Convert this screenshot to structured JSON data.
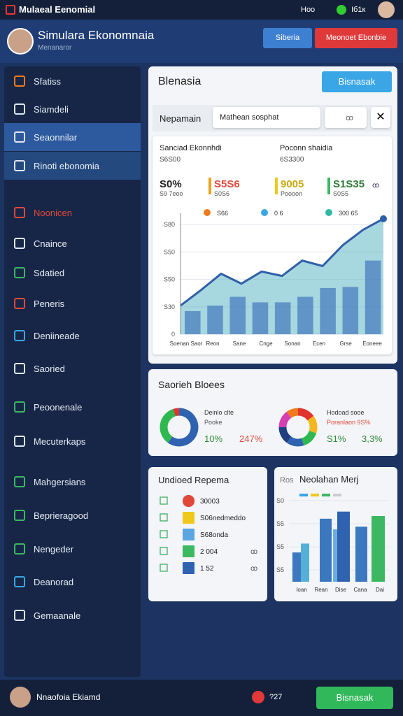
{
  "top_bar": {
    "app_name": "Mulaeal Eenomial",
    "right_labels": [
      "Hoo",
      "Iб1к"
    ]
  },
  "header": {
    "title": "Simulara Ekonomnaia",
    "subtitle": "Menanaror",
    "buttons": [
      "Siberia",
      "Meonoet Ebonbie"
    ]
  },
  "sidebar": {
    "items": [
      "Sfatiss",
      "Siamdeli",
      "Seaonnilar",
      "Rinoti ebonomia",
      "Noonicen",
      "Cnaince",
      "Sdatied",
      "Peneris",
      "Deniineade",
      "Saoried",
      "Peoonenale",
      "Mecuterkaps",
      "Mahgersians",
      "Beprieragood",
      "Nengeder",
      "Deanorad",
      "Gemaanale"
    ]
  },
  "main_panel": {
    "title": "Blenasia",
    "button": "Bisnasak",
    "filter_label": "Nepamain",
    "select": "Mathean sosphat",
    "search_text": "ꝏ",
    "cards": [
      {
        "title": "Sanciad Ekonnhdi",
        "value": "S6S00"
      },
      {
        "title": "Poconn shaidia",
        "value": "6S3300"
      }
    ],
    "stats": [
      {
        "value": "S0%",
        "sub": "S9 7eoo"
      },
      {
        "value": "S5S6",
        "sub": "S0S6"
      },
      {
        "value": "9005",
        "sub": "Poooon"
      },
      {
        "value": "S1S35",
        "sub": "S0S5"
      }
    ],
    "badge": "ꝏ"
  },
  "pie_panel": {
    "title": "Saorieh Bloees",
    "left": {
      "title": "Deinlo clte",
      "sub": "Pooke",
      "stats": [
        "10%",
        "247%"
      ]
    },
    "right": {
      "title": "Hodoad sooe",
      "sub": "Poranlaon 9S%",
      "stats": [
        "S1%",
        "3,3%"
      ]
    }
  },
  "list_panel": {
    "title": "Undioed Repema",
    "rows": [
      {
        "text": "30003",
        "value": ""
      },
      {
        "text": "S06nedmeddo",
        "value": ""
      },
      {
        "text": "S68onda",
        "value": ""
      },
      {
        "text": "2 004",
        "value": "ꝏ"
      },
      {
        "text": "1 52",
        "value": "ꝏ"
      }
    ]
  },
  "footer": {
    "user": "Nnaofoia Ekiamd",
    "badge": "?27",
    "button": "Bisnasak"
  },
  "chart_data": [
    {
      "type": "area",
      "legend": [
        "S66",
        "0 6",
        "300 65"
      ],
      "y_labels": [
        "S80",
        "S50",
        "S50",
        "S30",
        "0"
      ],
      "x_labels": [
        "Soenan Saor",
        "Reon",
        "Sane",
        "Cnge",
        "Sonan",
        "Ecen",
        "Grse",
        "Eoneee"
      ],
      "ylim": [
        0,
        110
      ],
      "line": {
        "color": "#2f5fa8",
        "values": [
          26,
          40,
          55,
          46,
          57,
          53,
          67,
          62,
          81,
          95,
          105
        ]
      },
      "bars": {
        "color": "#4a7fc0",
        "values": [
          21,
          26,
          34,
          29,
          29,
          34,
          42,
          43,
          67
        ]
      }
    },
    {
      "type": "pie",
      "values": [
        60,
        35,
        5
      ],
      "colors": [
        "#2f63b0",
        "#2fb84f",
        "#e0342c"
      ]
    },
    {
      "type": "pie",
      "values": [
        15,
        15,
        15,
        15,
        15,
        15,
        10
      ],
      "colors": [
        "#e0342c",
        "#f0b81c",
        "#2fb84f",
        "#2f63b0",
        "#1f3f80",
        "#d63fb0",
        "#f07a1c"
      ]
    },
    {
      "type": "bar",
      "title": "Neolahan Merj",
      "prefix": "Ros",
      "y_labels": [
        "S0",
        "S5",
        "S5",
        "S5"
      ],
      "x_labels": [
        "Ioan",
        "Rean",
        "Dise",
        "Cana",
        "Dai"
      ],
      "ylim": [
        0,
        100
      ],
      "values": [
        33,
        43,
        71,
        59,
        79,
        62,
        74
      ],
      "colors": [
        "#3b78c0",
        "#55b0d8",
        "#3b78c0",
        "#6aaee0",
        "#2f63b0",
        "#3b78c0",
        "#3cb862"
      ]
    }
  ]
}
